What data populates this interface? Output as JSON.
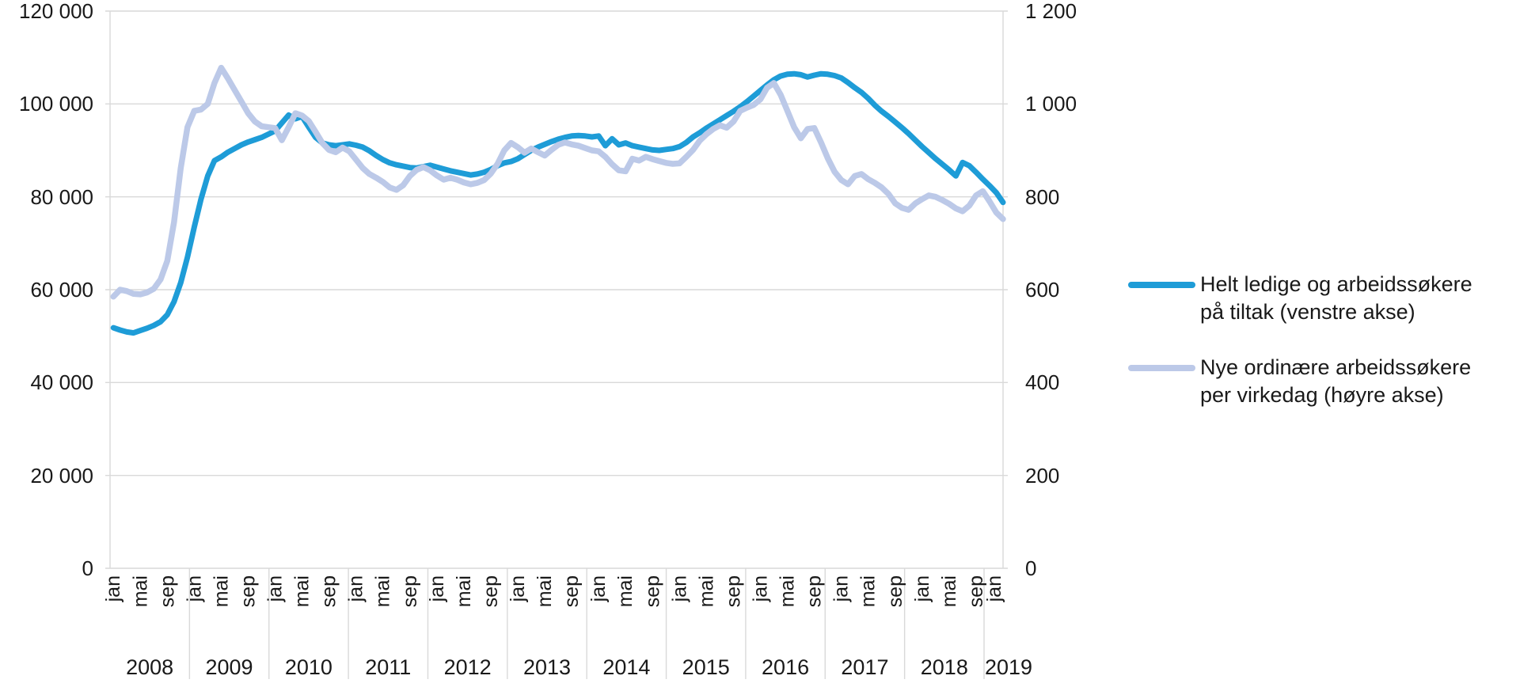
{
  "chart_data": {
    "type": "line",
    "title": "",
    "x_axis": {
      "unit": "month",
      "start": "jan 2008",
      "end": "jan 2019",
      "years": [
        "2008",
        "2009",
        "2010",
        "2011",
        "2012",
        "2013",
        "2014",
        "2015",
        "2016",
        "2017",
        "2018",
        "2019"
      ],
      "month_tick_labels": [
        "jan",
        "mai",
        "sep"
      ],
      "month_tick_offsets": [
        0,
        4,
        8
      ],
      "last_year_tick_labels": [
        "jan"
      ]
    },
    "left_axis": {
      "min": 0,
      "max": 120000,
      "step": 20000,
      "tick_labels": [
        "0",
        "20 000",
        "40 000",
        "60 000",
        "80 000",
        "100 000",
        "120 000"
      ]
    },
    "right_axis": {
      "min": 0,
      "max": 1200,
      "step": 200,
      "tick_labels": [
        "0",
        "200",
        "400",
        "600",
        "800",
        "1 000",
        "1 200"
      ]
    },
    "grid_color": "#d9d9d9",
    "text_color": "#191919",
    "series": [
      {
        "name": "Helt ledige og arbeidssøkere på tiltak (venstre akse)",
        "axis": "left",
        "color": "#1e9cd7",
        "stroke_width": 7,
        "values": [
          51800,
          51300,
          50900,
          50700,
          51200,
          51700,
          52300,
          53100,
          54600,
          57400,
          61500,
          67000,
          73500,
          79500,
          84500,
          87800,
          88600,
          89600,
          90400,
          91200,
          91800,
          92300,
          92800,
          93500,
          94200,
          95900,
          97600,
          96800,
          97300,
          95000,
          92800,
          91600,
          91200,
          91000,
          91200,
          91400,
          91100,
          90700,
          89900,
          88900,
          88000,
          87300,
          86900,
          86600,
          86300,
          86200,
          86500,
          86800,
          86400,
          86000,
          85600,
          85300,
          85000,
          84700,
          84900,
          85300,
          85900,
          86700,
          87300,
          87600,
          88200,
          89100,
          90000,
          90700,
          91300,
          91900,
          92400,
          92800,
          93100,
          93200,
          93100,
          92900,
          93100,
          91000,
          92500,
          91200,
          91600,
          91000,
          90700,
          90400,
          90100,
          90000,
          90200,
          90400,
          90800,
          91700,
          92900,
          93800,
          94800,
          95700,
          96600,
          97500,
          98400,
          99400,
          100500,
          101700,
          102900,
          104100,
          105200,
          106000,
          106400,
          106500,
          106300,
          105800,
          106200,
          106500,
          106400,
          106100,
          105600,
          104600,
          103500,
          102500,
          101200,
          99700,
          98400,
          97300,
          96100,
          94900,
          93600,
          92200,
          90800,
          89500,
          88200,
          87000,
          85800,
          84500,
          87400,
          86700,
          85300,
          83800,
          82400,
          80900,
          78800
        ]
      },
      {
        "name": "Nye ordinære arbeidssøkere per virkedag (høyre akse)",
        "axis": "right",
        "color": "#bcc9e8",
        "stroke_width": 7.5,
        "values": [
          585,
          600,
          597,
          591,
          590,
          594,
          602,
          622,
          662,
          745,
          862,
          950,
          985,
          988,
          1000,
          1045,
          1078,
          1055,
          1030,
          1005,
          980,
          962,
          952,
          950,
          948,
          922,
          950,
          980,
          975,
          963,
          940,
          916,
          901,
          896,
          906,
          898,
          880,
          862,
          849,
          841,
          832,
          820,
          815,
          825,
          845,
          858,
          864,
          857,
          846,
          837,
          841,
          837,
          831,
          827,
          830,
          836,
          850,
          871,
          900,
          916,
          907,
          895,
          904,
          896,
          889,
          901,
          912,
          917,
          913,
          910,
          905,
          900,
          898,
          886,
          870,
          857,
          855,
          882,
          878,
          886,
          881,
          877,
          873,
          871,
          872,
          886,
          901,
          921,
          935,
          946,
          954,
          949,
          962,
          985,
          992,
          998,
          1010,
          1035,
          1045,
          1020,
          985,
          950,
          926,
          946,
          948,
          917,
          883,
          854,
          836,
          827,
          845,
          849,
          838,
          830,
          820,
          806,
          786,
          776,
          772,
          786,
          795,
          803,
          800,
          793,
          785,
          775,
          769,
          781,
          803,
          812,
          790,
          766,
          752
        ]
      }
    ]
  },
  "legend": {
    "entries": [
      {
        "line1": "Helt ledige og arbeidssøkere",
        "line2": "på tiltak (venstre akse)"
      },
      {
        "line1": "Nye ordinære arbeidssøkere",
        "line2": "per virkedag (høyre akse)"
      }
    ]
  }
}
